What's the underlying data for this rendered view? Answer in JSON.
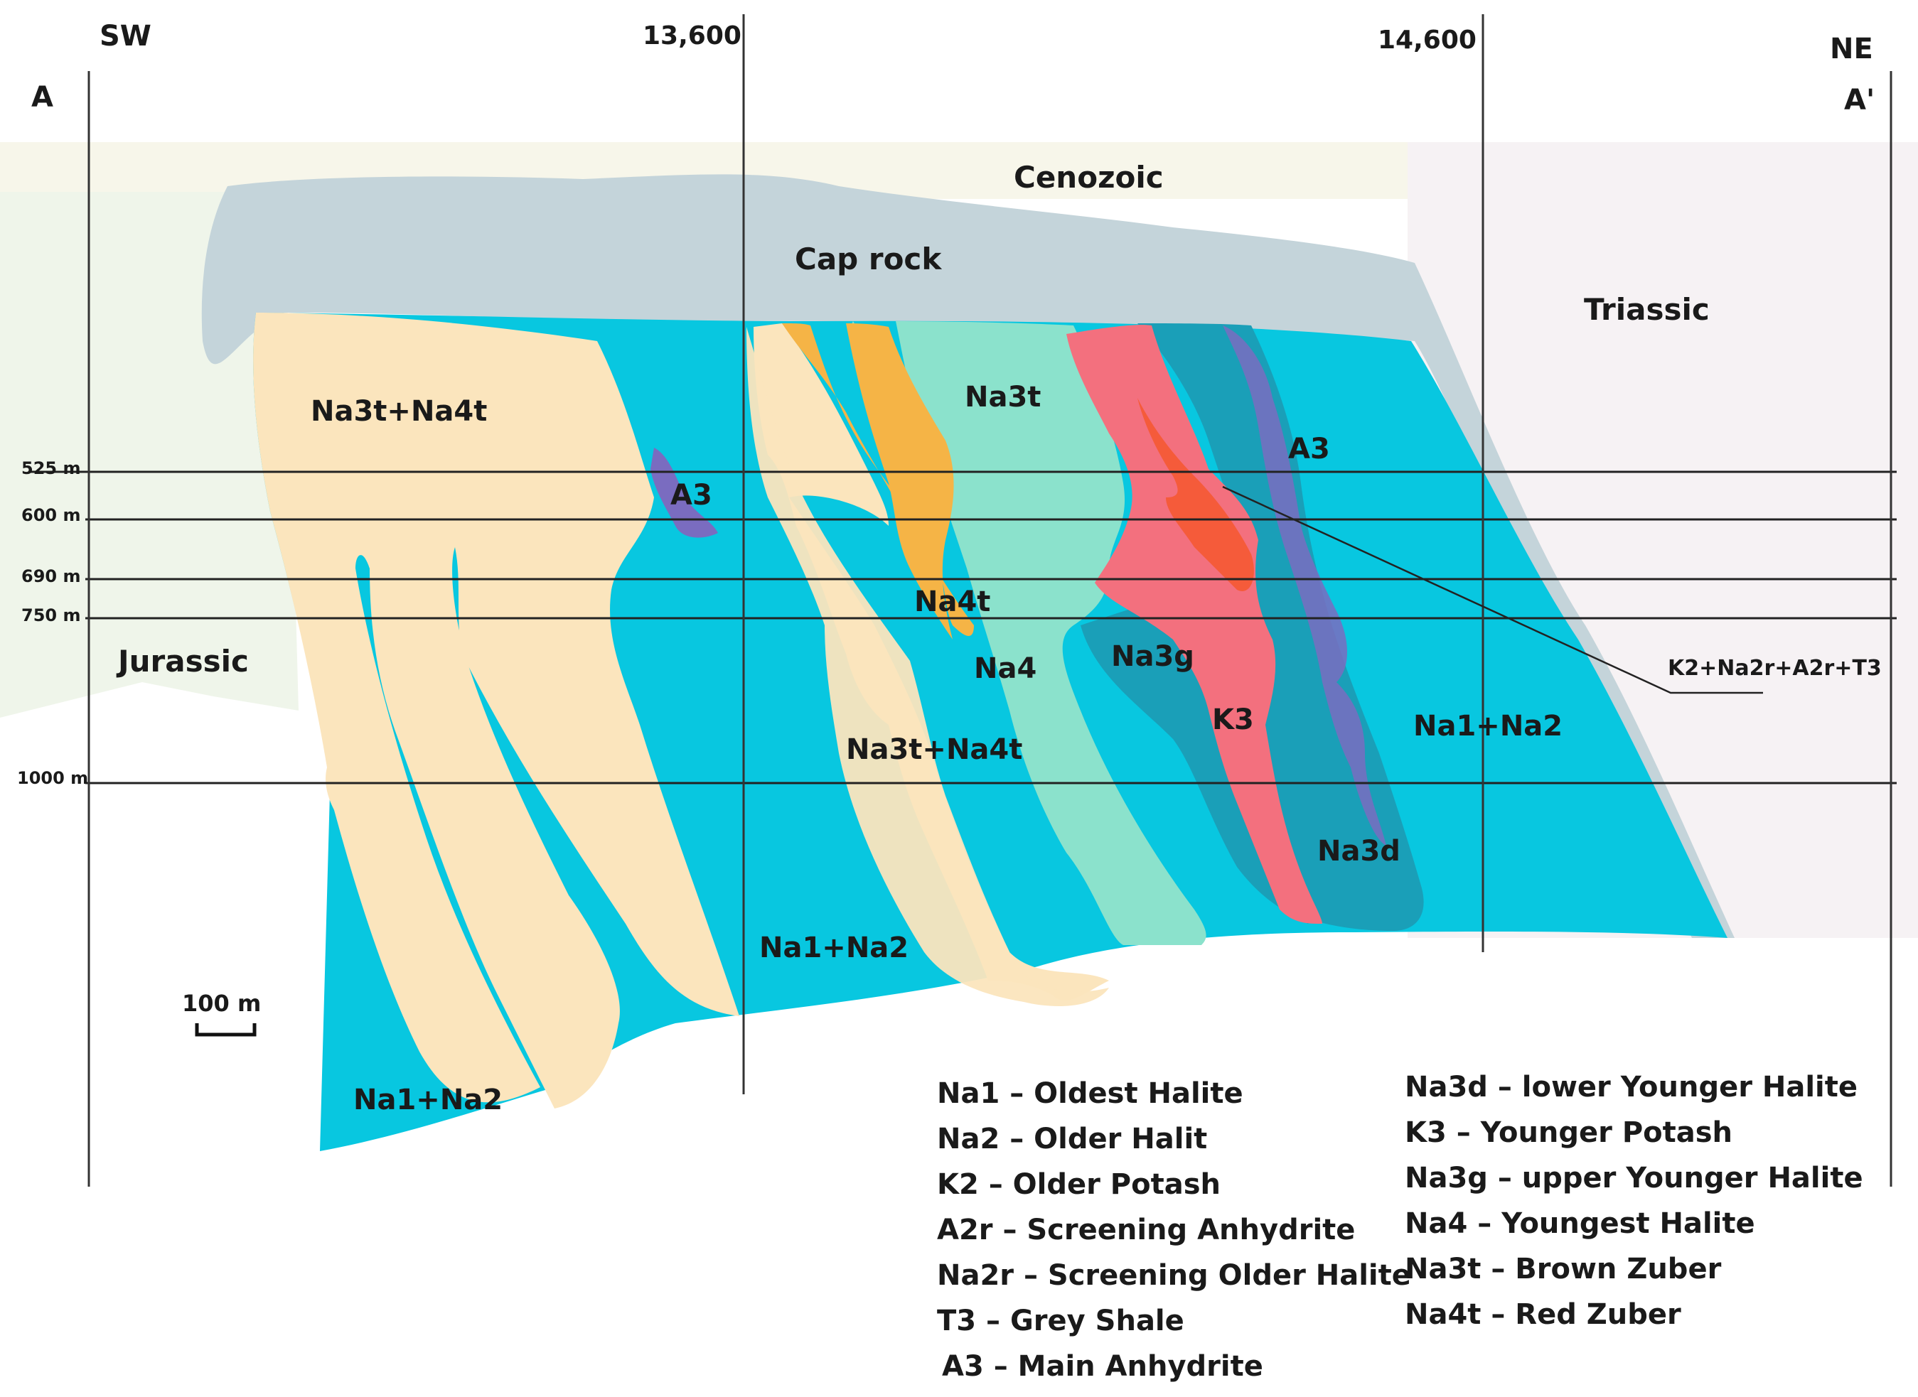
{
  "orientation": {
    "left_dir": "SW",
    "right_dir": "NE",
    "left_point": "A",
    "right_point": "A'"
  },
  "distance_ticks": [
    "13,600",
    "14,600"
  ],
  "depth_levels": [
    "525 m",
    "600 m",
    "690 m",
    "750 m",
    "1000 m"
  ],
  "scale_bar": "100 m",
  "formations": {
    "cenozoic": "Cenozoic",
    "cap_rock": "Cap rock",
    "triassic": "Triassic",
    "jurassic": "Jurassic"
  },
  "unit_labels": {
    "na3t_na4t_upper": "Na3t+Na4t",
    "na3t_na4t_mid": "Na3t+Na4t",
    "na3t": "Na3t",
    "a3_left": "A3",
    "a3_right": "A3",
    "na4t": "Na4t",
    "na4": "Na4",
    "na3g": "Na3g",
    "k3": "K3",
    "na1_na2_right": "Na1+Na2",
    "na3d": "Na3d",
    "na1_na2_mid": "Na1+Na2",
    "na1_na2_left": "Na1+Na2"
  },
  "pointer_label": "K2+Na2r+A2r+T3",
  "legend_left": [
    "Na1 – Oldest Halite",
    "Na2 – Older Halit",
    "K2 – Older Potash",
    "A2r – Screening Anhydrite",
    "Na2r – Screening Older Halite",
    "T3 – Grey Shale",
    "A3 – Main Anhydrite"
  ],
  "legend_right": [
    "Na3d – lower Younger Halite",
    "K3 – Younger Potash",
    "Na3g – upper Younger Halite",
    "Na4 – Youngest Halite",
    "Na3t – Brown Zuber",
    "Na4t – Red Zuber"
  ],
  "colors": {
    "cenozoic_bg": "#f7f6ea",
    "triassic_bg": "#f5f2f4",
    "jurassic_bg": "#eff5ea",
    "cap_rock": "#c4d4da",
    "cream": "#fbe5bd",
    "cyan": "#08c7e0",
    "mint": "#8be2cc",
    "teal_dark": "#1a9fb8",
    "orange": "#f5b446",
    "pink": "#f3707e",
    "red_orange": "#f55b3a",
    "purple": "#7a6cc0"
  }
}
